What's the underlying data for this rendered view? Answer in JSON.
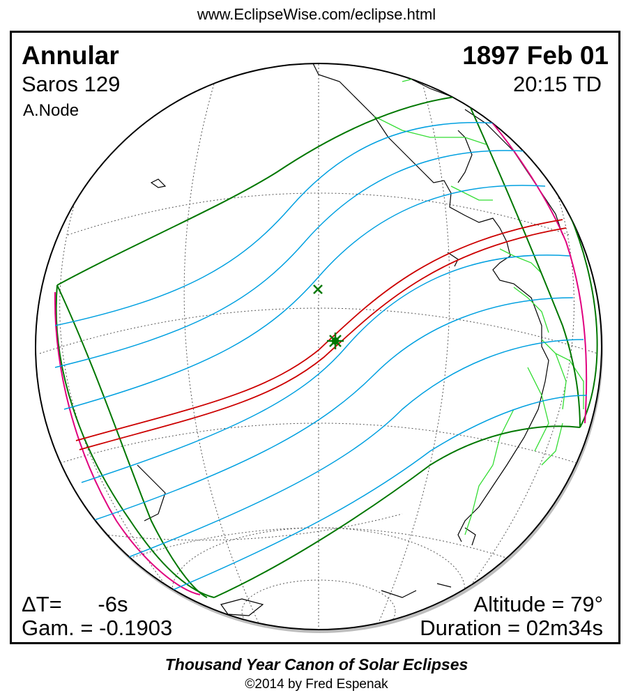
{
  "header": {
    "url": "www.EclipseWise.com/eclipse.html"
  },
  "eclipse": {
    "type": "Annular",
    "date": "1897 Feb 01",
    "saros": "Saros 129",
    "time": "20:15 TD",
    "node": "A.Node"
  },
  "stats": {
    "delta_t": "ΔT=      -6s",
    "gamma": "Gam. = -0.1903",
    "altitude": "Altitude = 79°",
    "duration": "Duration = 02m34s"
  },
  "footer": {
    "title": "Thousand Year Canon of Solar Eclipses",
    "copyright": "©2014 by Fred Espenak"
  },
  "colors": {
    "central_path": "#cc0000",
    "penumbral_limits": "#007700",
    "rise_set_curves": "#e0007f",
    "magnitude_isolines": "#00a0e0",
    "coastlines": "#000000",
    "borders": "#33dd33",
    "grid": "#555555"
  },
  "markers": {
    "greatest_eclipse": "green-star-icon",
    "subsolar_point": "green-cross-icon"
  }
}
